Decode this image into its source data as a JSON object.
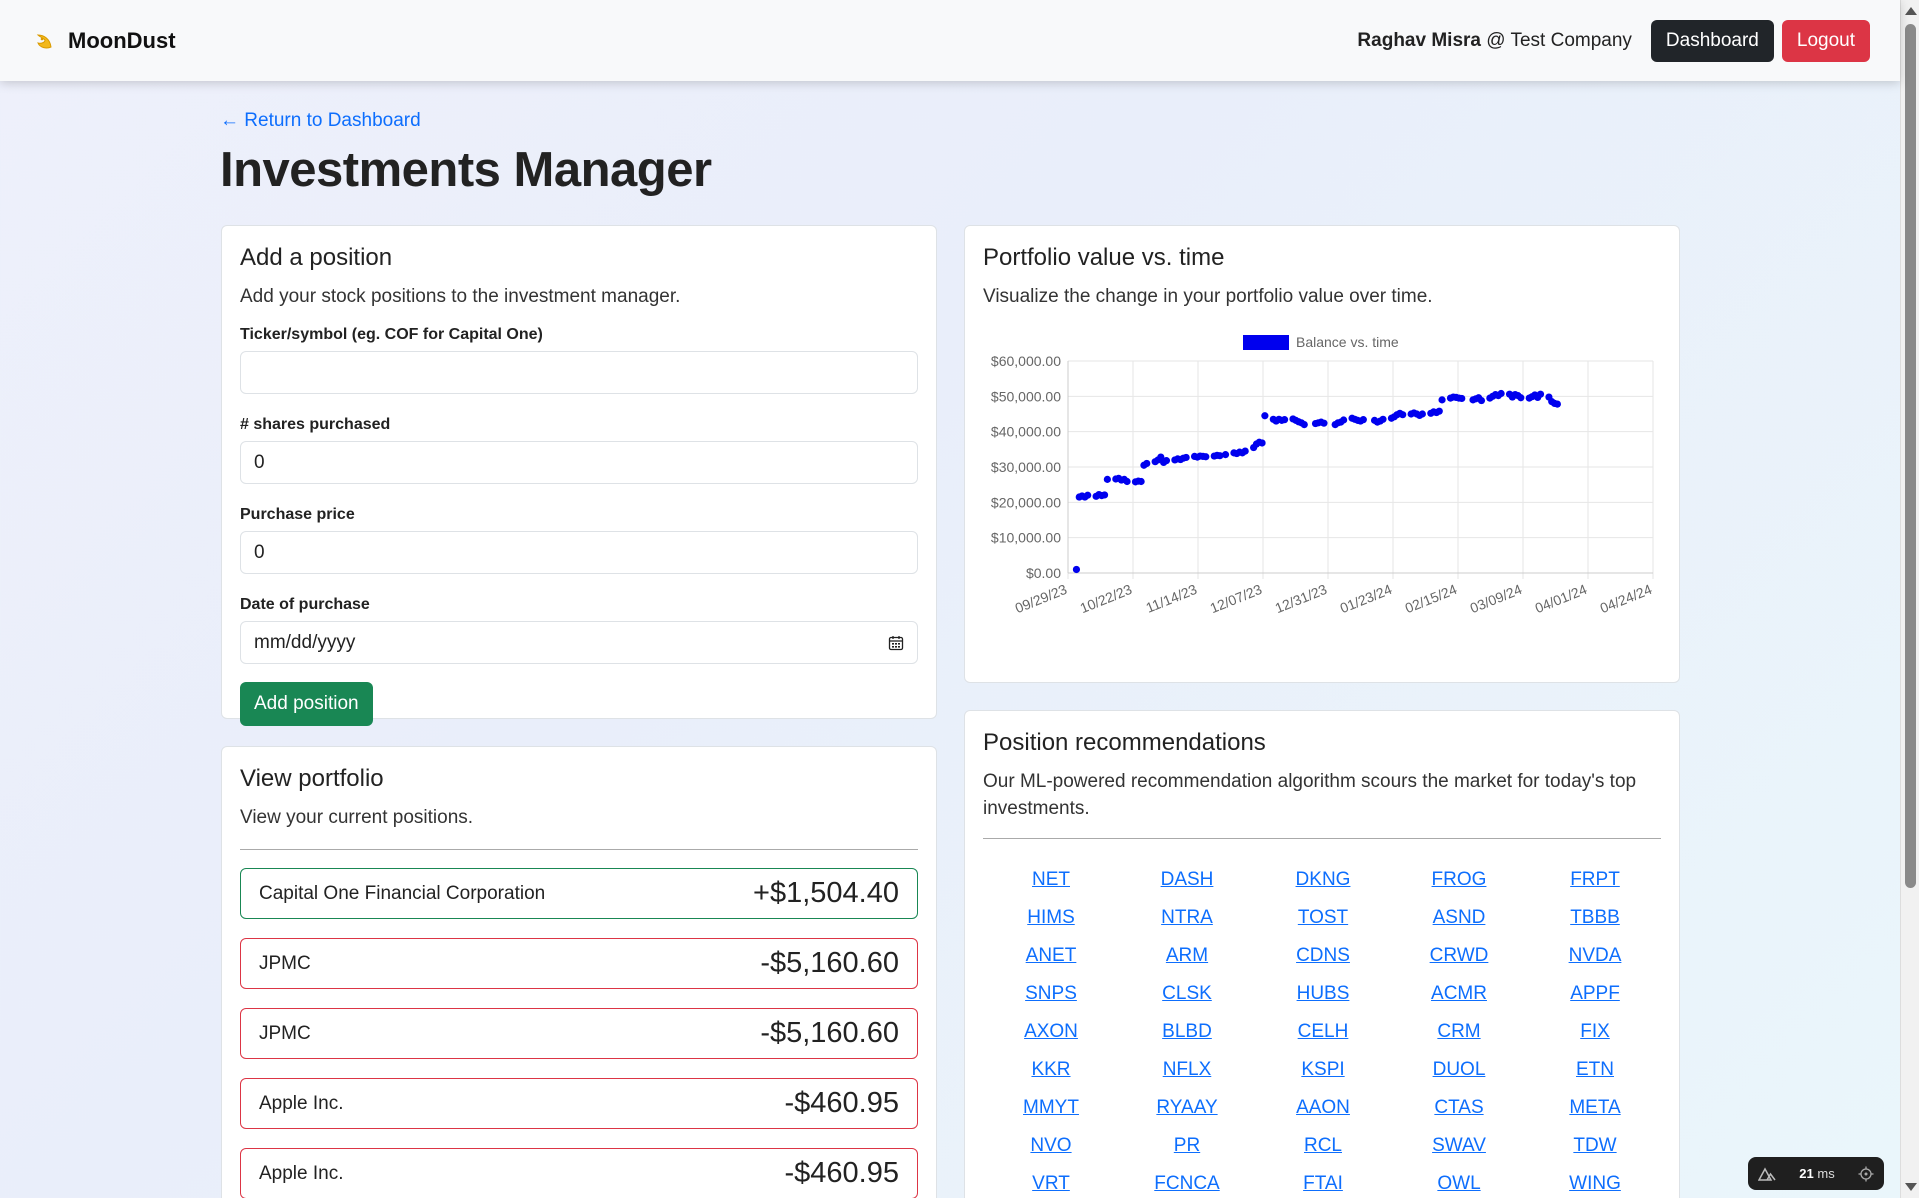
{
  "nav": {
    "brand": "MoonDust",
    "user_name": "Raghav Misra",
    "company": "@ Test Company",
    "dashboard_label": "Dashboard",
    "logout_label": "Logout"
  },
  "page": {
    "back_link": "← Return to Dashboard",
    "title": "Investments Manager"
  },
  "add_position": {
    "title": "Add a position",
    "subtitle": "Add your stock positions to the investment manager.",
    "ticker_label": "Ticker/symbol (eg. COF for Capital One)",
    "ticker_value": "",
    "shares_label": "# shares purchased",
    "shares_value": "0",
    "price_label": "Purchase price",
    "price_value": "0",
    "date_label": "Date of purchase",
    "date_placeholder": "mm/dd/yyyy",
    "submit_label": "Add position"
  },
  "portfolio": {
    "title": "View portfolio",
    "subtitle": "View your current positions.",
    "positions": [
      {
        "name": "Capital One Financial Corporation",
        "value": "+$1,504.40",
        "status": "gain"
      },
      {
        "name": "JPMC",
        "value": "-$5,160.60",
        "status": "loss"
      },
      {
        "name": "JPMC",
        "value": "-$5,160.60",
        "status": "loss"
      },
      {
        "name": "Apple Inc.",
        "value": "-$460.95",
        "status": "loss"
      },
      {
        "name": "Apple Inc.",
        "value": "-$460.95",
        "status": "loss"
      }
    ]
  },
  "chart_card": {
    "title": "Portfolio value vs. time",
    "subtitle": "Visualize the change in your portfolio value over time."
  },
  "chart_data": {
    "type": "scatter",
    "title": "",
    "xlabel": "",
    "ylabel": "",
    "legend": [
      "Balance vs. time"
    ],
    "legend_position": "top",
    "grid": true,
    "color": "#0000ee",
    "x_ticks": [
      "09/29/23",
      "10/22/23",
      "11/14/23",
      "12/07/23",
      "12/31/23",
      "01/23/24",
      "02/15/24",
      "03/09/24",
      "04/01/24",
      "04/24/24"
    ],
    "y_ticks": [
      "$60,000.00",
      "$50,000.00",
      "$40,000.00",
      "$30,000.00",
      "$20,000.00",
      "$10,000.00",
      "$0.00"
    ],
    "ylim": [
      0,
      60000
    ],
    "xlim": [
      "2023-09-29",
      "2024-04-24"
    ],
    "series": [
      {
        "name": "Balance vs. time",
        "points": [
          {
            "x": "2023-10-02",
            "y": 1000
          },
          {
            "x": "2023-10-03",
            "y": 21500
          },
          {
            "x": "2023-10-04",
            "y": 21800
          },
          {
            "x": "2023-10-05",
            "y": 21500
          },
          {
            "x": "2023-10-06",
            "y": 22000
          },
          {
            "x": "2023-10-09",
            "y": 21700
          },
          {
            "x": "2023-10-10",
            "y": 22200
          },
          {
            "x": "2023-10-11",
            "y": 21900
          },
          {
            "x": "2023-10-12",
            "y": 22100
          },
          {
            "x": "2023-10-13",
            "y": 26500
          },
          {
            "x": "2023-10-16",
            "y": 26600
          },
          {
            "x": "2023-10-17",
            "y": 26800
          },
          {
            "x": "2023-10-18",
            "y": 26300
          },
          {
            "x": "2023-10-19",
            "y": 26500
          },
          {
            "x": "2023-10-20",
            "y": 25900
          },
          {
            "x": "2023-10-23",
            "y": 25800
          },
          {
            "x": "2023-10-24",
            "y": 26000
          },
          {
            "x": "2023-10-25",
            "y": 25900
          },
          {
            "x": "2023-10-26",
            "y": 30500
          },
          {
            "x": "2023-10-27",
            "y": 31000
          },
          {
            "x": "2023-10-30",
            "y": 31500
          },
          {
            "x": "2023-10-31",
            "y": 32000
          },
          {
            "x": "2023-11-01",
            "y": 32800
          },
          {
            "x": "2023-11-02",
            "y": 31300
          },
          {
            "x": "2023-11-03",
            "y": 31800
          },
          {
            "x": "2023-11-06",
            "y": 32000
          },
          {
            "x": "2023-11-07",
            "y": 32300
          },
          {
            "x": "2023-11-08",
            "y": 32100
          },
          {
            "x": "2023-11-09",
            "y": 32500
          },
          {
            "x": "2023-11-10",
            "y": 32700
          },
          {
            "x": "2023-11-13",
            "y": 33000
          },
          {
            "x": "2023-11-14",
            "y": 32800
          },
          {
            "x": "2023-11-15",
            "y": 33100
          },
          {
            "x": "2023-11-16",
            "y": 33000
          },
          {
            "x": "2023-11-17",
            "y": 32900
          },
          {
            "x": "2023-11-20",
            "y": 33100
          },
          {
            "x": "2023-11-21",
            "y": 33300
          },
          {
            "x": "2023-11-22",
            "y": 33200
          },
          {
            "x": "2023-11-24",
            "y": 33500
          },
          {
            "x": "2023-11-27",
            "y": 34000
          },
          {
            "x": "2023-11-28",
            "y": 33800
          },
          {
            "x": "2023-11-29",
            "y": 34200
          },
          {
            "x": "2023-11-30",
            "y": 34000
          },
          {
            "x": "2023-12-01",
            "y": 34500
          },
          {
            "x": "2023-12-04",
            "y": 35500
          },
          {
            "x": "2023-12-05",
            "y": 36500
          },
          {
            "x": "2023-12-06",
            "y": 37000
          },
          {
            "x": "2023-12-07",
            "y": 36800
          },
          {
            "x": "2023-12-08",
            "y": 44500
          },
          {
            "x": "2023-12-11",
            "y": 43500
          },
          {
            "x": "2023-12-12",
            "y": 43000
          },
          {
            "x": "2023-12-13",
            "y": 43500
          },
          {
            "x": "2023-12-14",
            "y": 43200
          },
          {
            "x": "2023-12-15",
            "y": 43400
          },
          {
            "x": "2023-12-18",
            "y": 43600
          },
          {
            "x": "2023-12-19",
            "y": 43200
          },
          {
            "x": "2023-12-20",
            "y": 42800
          },
          {
            "x": "2023-12-21",
            "y": 42500
          },
          {
            "x": "2023-12-22",
            "y": 42000
          },
          {
            "x": "2023-12-26",
            "y": 42300
          },
          {
            "x": "2023-12-27",
            "y": 42500
          },
          {
            "x": "2023-12-28",
            "y": 42700
          },
          {
            "x": "2023-12-29",
            "y": 42400
          },
          {
            "x": "2024-01-02",
            "y": 42000
          },
          {
            "x": "2024-01-03",
            "y": 42500
          },
          {
            "x": "2024-01-04",
            "y": 42700
          },
          {
            "x": "2024-01-05",
            "y": 43300
          },
          {
            "x": "2024-01-08",
            "y": 43800
          },
          {
            "x": "2024-01-09",
            "y": 43500
          },
          {
            "x": "2024-01-10",
            "y": 43200
          },
          {
            "x": "2024-01-11",
            "y": 43000
          },
          {
            "x": "2024-01-12",
            "y": 43400
          },
          {
            "x": "2024-01-16",
            "y": 43200
          },
          {
            "x": "2024-01-17",
            "y": 42700
          },
          {
            "x": "2024-01-18",
            "y": 43000
          },
          {
            "x": "2024-01-19",
            "y": 43500
          },
          {
            "x": "2024-01-22",
            "y": 43800
          },
          {
            "x": "2024-01-23",
            "y": 44200
          },
          {
            "x": "2024-01-24",
            "y": 44800
          },
          {
            "x": "2024-01-25",
            "y": 45200
          },
          {
            "x": "2024-01-26",
            "y": 44800
          },
          {
            "x": "2024-01-29",
            "y": 45000
          },
          {
            "x": "2024-01-30",
            "y": 45300
          },
          {
            "x": "2024-01-31",
            "y": 45000
          },
          {
            "x": "2024-02-01",
            "y": 44600
          },
          {
            "x": "2024-02-02",
            "y": 45000
          },
          {
            "x": "2024-02-05",
            "y": 45200
          },
          {
            "x": "2024-02-06",
            "y": 45600
          },
          {
            "x": "2024-02-07",
            "y": 45400
          },
          {
            "x": "2024-02-08",
            "y": 45800
          },
          {
            "x": "2024-02-09",
            "y": 49000
          },
          {
            "x": "2024-02-12",
            "y": 49500
          },
          {
            "x": "2024-02-13",
            "y": 49800
          },
          {
            "x": "2024-02-14",
            "y": 49700
          },
          {
            "x": "2024-02-15",
            "y": 49500
          },
          {
            "x": "2024-02-16",
            "y": 49400
          },
          {
            "x": "2024-02-20",
            "y": 49000
          },
          {
            "x": "2024-02-21",
            "y": 49300
          },
          {
            "x": "2024-02-22",
            "y": 49600
          },
          {
            "x": "2024-02-23",
            "y": 48800
          },
          {
            "x": "2024-02-26",
            "y": 49500
          },
          {
            "x": "2024-02-27",
            "y": 50000
          },
          {
            "x": "2024-02-28",
            "y": 50500
          },
          {
            "x": "2024-02-29",
            "y": 50200
          },
          {
            "x": "2024-03-01",
            "y": 50800
          },
          {
            "x": "2024-03-04",
            "y": 50600
          },
          {
            "x": "2024-03-05",
            "y": 49800
          },
          {
            "x": "2024-03-06",
            "y": 50500
          },
          {
            "x": "2024-03-07",
            "y": 50200
          },
          {
            "x": "2024-03-08",
            "y": 49600
          },
          {
            "x": "2024-03-11",
            "y": 49500
          },
          {
            "x": "2024-03-12",
            "y": 49900
          },
          {
            "x": "2024-03-13",
            "y": 50400
          },
          {
            "x": "2024-03-14",
            "y": 49700
          },
          {
            "x": "2024-03-15",
            "y": 50600
          },
          {
            "x": "2024-03-18",
            "y": 49800
          },
          {
            "x": "2024-03-19",
            "y": 48500
          },
          {
            "x": "2024-03-20",
            "y": 48000
          },
          {
            "x": "2024-03-21",
            "y": 47800
          }
        ]
      }
    ]
  },
  "recommendations": {
    "title": "Position recommendations",
    "subtitle": "Our ML-powered recommendation algorithm scours the market for today's top investments.",
    "tickers": [
      "NET",
      "DASH",
      "DKNG",
      "FROG",
      "FRPT",
      "HIMS",
      "NTRA",
      "TOST",
      "ASND",
      "TBBB",
      "ANET",
      "ARM",
      "CDNS",
      "CRWD",
      "NVDA",
      "SNPS",
      "CLSK",
      "HUBS",
      "ACMR",
      "APPF",
      "AXON",
      "BLBD",
      "CELH",
      "CRM",
      "FIX",
      "KKR",
      "NFLX",
      "KSPI",
      "DUOL",
      "ETN",
      "MMYT",
      "RYAAY",
      "AAON",
      "CTAS",
      "META",
      "NVO",
      "PR",
      "RCL",
      "SWAV",
      "TDW",
      "VRT",
      "FCNCA",
      "FTAI",
      "OWL",
      "WING"
    ]
  },
  "perf_badge": {
    "value": "21",
    "unit": "ms"
  },
  "colors": {
    "primary_link": "#0d6efd",
    "gain": "#198754",
    "loss": "#dc3545",
    "chart_point": "#0000ee"
  }
}
